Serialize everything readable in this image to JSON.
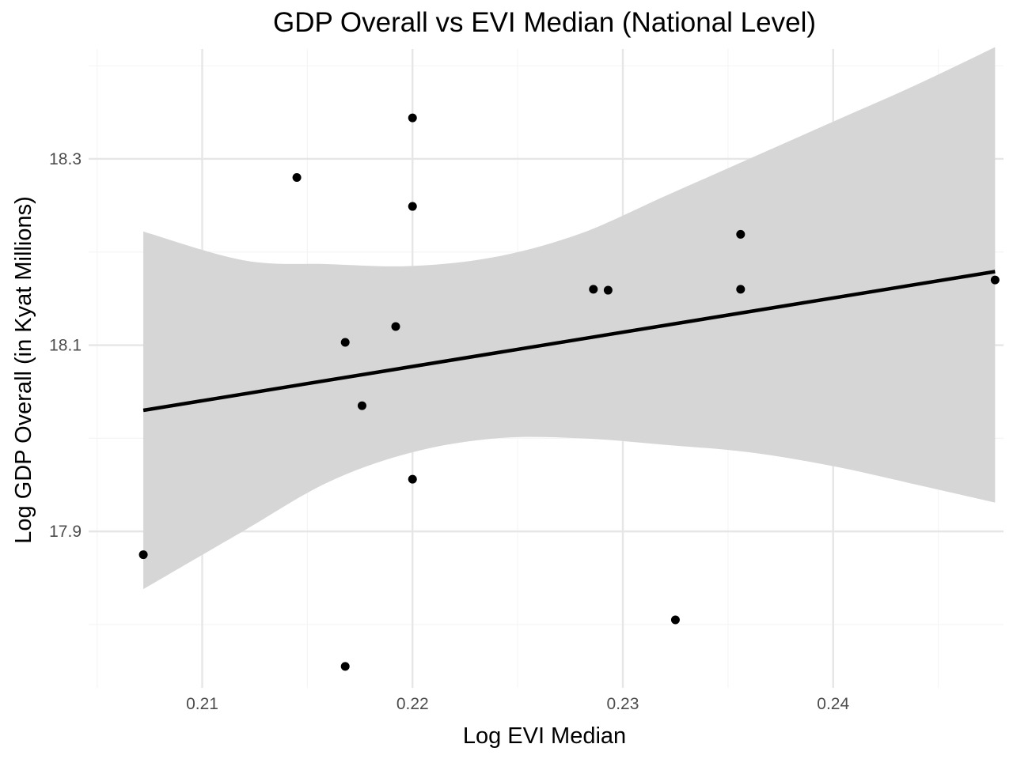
{
  "chart_data": {
    "type": "scatter",
    "title": "GDP Overall vs EVI Median (National Level)",
    "xlabel": "Log EVI Median",
    "ylabel": "Log GDP Overall (in Kyat Millions)",
    "xlim": [
      0.2046,
      0.2481
    ],
    "ylim": [
      17.732,
      18.418
    ],
    "x_ticks": [
      0.21,
      0.22,
      0.23,
      0.24
    ],
    "x_tick_labels": [
      "0.21",
      "0.22",
      "0.23",
      "0.24"
    ],
    "y_ticks": [
      17.9,
      18.1,
      18.3
    ],
    "y_tick_labels": [
      "17.9",
      "18.1",
      "18.3"
    ],
    "grid": true,
    "legend": "none",
    "colors": {
      "point": "#000000",
      "trend_line": "#000000",
      "ribbon": "#d6d6d6",
      "grid_major": "#e6e6e6",
      "grid_minor": "#f5f5f5"
    },
    "points": [
      {
        "x": 0.2072,
        "y": 17.875
      },
      {
        "x": 0.2145,
        "y": 18.28
      },
      {
        "x": 0.2168,
        "y": 18.103
      },
      {
        "x": 0.2168,
        "y": 17.755
      },
      {
        "x": 0.2176,
        "y": 18.035
      },
      {
        "x": 0.2192,
        "y": 18.12
      },
      {
        "x": 0.22,
        "y": 18.344
      },
      {
        "x": 0.22,
        "y": 18.249
      },
      {
        "x": 0.22,
        "y": 17.956
      },
      {
        "x": 0.2286,
        "y": 18.16
      },
      {
        "x": 0.2293,
        "y": 18.159
      },
      {
        "x": 0.2325,
        "y": 17.805
      },
      {
        "x": 0.2356,
        "y": 18.219
      },
      {
        "x": 0.2356,
        "y": 18.16
      },
      {
        "x": 0.2477,
        "y": 18.17
      }
    ],
    "trend_line": {
      "x": [
        0.2072,
        0.2477
      ],
      "y": [
        18.03,
        18.179
      ]
    },
    "confidence_band": {
      "x": [
        0.2072,
        0.212,
        0.216,
        0.22,
        0.224,
        0.228,
        0.232,
        0.236,
        0.24,
        0.244,
        0.2477
      ],
      "upper": [
        18.222,
        18.191,
        18.187,
        18.185,
        18.195,
        18.22,
        18.26,
        18.3,
        18.34,
        18.38,
        18.42
      ],
      "lower": [
        17.838,
        17.901,
        17.953,
        17.985,
        18.0,
        18.0,
        17.993,
        17.985,
        17.97,
        17.95,
        17.931
      ]
    }
  }
}
